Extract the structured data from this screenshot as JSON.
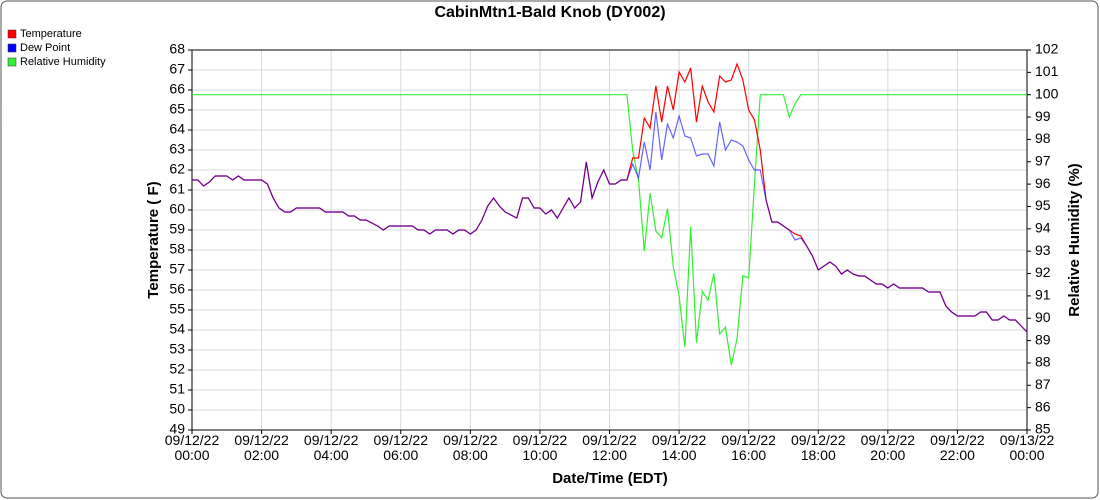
{
  "chart_data": {
    "type": "line",
    "title": "CabinMtn1-Bald Knob (DY002)",
    "xlabel": "Date/Time (EDT)",
    "ylabel": "Temperature ( F)",
    "y2label": "Relative Humidity (%)",
    "grid": true,
    "legend": "top-left",
    "xlim": [
      "09/12/22 00:00",
      "09/13/22 00:00"
    ],
    "xticks": [
      "09/12/22 00:00",
      "09/12/22 02:00",
      "09/12/22 04:00",
      "09/12/22 06:00",
      "09/12/22 08:00",
      "09/12/22 10:00",
      "09/12/22 12:00",
      "09/12/22 14:00",
      "09/12/22 16:00",
      "09/12/22 18:00",
      "09/12/22 20:00",
      "09/12/22 22:00",
      "09/13/22 00:00"
    ],
    "ylim": [
      49,
      68
    ],
    "yticks": [
      49,
      50,
      51,
      52,
      53,
      54,
      55,
      56,
      57,
      58,
      59,
      60,
      61,
      62,
      63,
      64,
      65,
      66,
      67,
      68
    ],
    "y2lim": [
      85,
      102
    ],
    "y2ticks": [
      85,
      86,
      87,
      88,
      89,
      90,
      91,
      92,
      93,
      94,
      95,
      96,
      97,
      98,
      99,
      100,
      101,
      102
    ],
    "x": [
      "09/12/22 00:00",
      "09/12/22 00:10",
      "09/12/22 00:20",
      "09/12/22 00:30",
      "09/12/22 00:40",
      "09/12/22 01:00",
      "09/12/22 01:10",
      "09/12/22 01:20",
      "09/12/22 01:30",
      "09/12/22 02:00",
      "09/12/22 02:10",
      "09/12/22 02:20",
      "09/12/22 02:30",
      "09/12/22 02:40",
      "09/12/22 02:50",
      "09/12/22 03:00",
      "09/12/22 03:40",
      "09/12/22 03:50",
      "09/12/22 04:20",
      "09/12/22 04:30",
      "09/12/22 04:40",
      "09/12/22 04:50",
      "09/12/22 05:00",
      "09/12/22 05:20",
      "09/12/22 05:30",
      "09/12/22 05:40",
      "09/12/22 06:20",
      "09/12/22 06:30",
      "09/12/22 06:40",
      "09/12/22 06:50",
      "09/12/22 07:00",
      "09/12/22 07:20",
      "09/12/22 07:30",
      "09/12/22 07:40",
      "09/12/22 07:50",
      "09/12/22 08:00",
      "09/12/22 08:10",
      "09/12/22 08:20",
      "09/12/22 08:30",
      "09/12/22 08:40",
      "09/12/22 08:50",
      "09/12/22 09:00",
      "09/12/22 09:20",
      "09/12/22 09:30",
      "09/12/22 09:40",
      "09/12/22 09:50",
      "09/12/22 10:00",
      "09/12/22 10:10",
      "09/12/22 10:20",
      "09/12/22 10:30",
      "09/12/22 10:40",
      "09/12/22 10:50",
      "09/12/22 11:00",
      "09/12/22 11:10",
      "09/12/22 11:20",
      "09/12/22 11:30",
      "09/12/22 11:40",
      "09/12/22 11:50",
      "09/12/22 12:00",
      "09/12/22 12:10",
      "09/12/22 12:20",
      "09/12/22 12:30",
      "09/12/22 12:40",
      "09/12/22 12:50",
      "09/12/22 13:00",
      "09/12/22 13:10",
      "09/12/22 13:20",
      "09/12/22 13:30",
      "09/12/22 13:40",
      "09/12/22 13:50",
      "09/12/22 14:00",
      "09/12/22 14:10",
      "09/12/22 14:20",
      "09/12/22 14:30",
      "09/12/22 14:40",
      "09/12/22 14:50",
      "09/12/22 15:00",
      "09/12/22 15:10",
      "09/12/22 15:20",
      "09/12/22 15:30",
      "09/12/22 15:40",
      "09/12/22 15:50",
      "09/12/22 16:00",
      "09/12/22 16:10",
      "09/12/22 16:20",
      "09/12/22 16:30",
      "09/12/22 16:40",
      "09/12/22 16:50",
      "09/12/22 17:00",
      "09/12/22 17:10",
      "09/12/22 17:20",
      "09/12/22 17:30",
      "09/12/22 17:40",
      "09/12/22 17:50",
      "09/12/22 18:00",
      "09/12/22 18:10",
      "09/12/22 18:20",
      "09/12/22 18:30",
      "09/12/22 18:40",
      "09/12/22 18:50",
      "09/12/22 19:00",
      "09/12/22 19:10",
      "09/12/22 19:20",
      "09/12/22 19:30",
      "09/12/22 19:40",
      "09/12/22 19:50",
      "09/12/22 20:00",
      "09/12/22 20:10",
      "09/12/22 20:20",
      "09/12/22 21:00",
      "09/12/22 21:10",
      "09/12/22 21:30",
      "09/12/22 21:40",
      "09/12/22 21:50",
      "09/12/22 22:00",
      "09/12/22 22:30",
      "09/12/22 22:40",
      "09/12/22 22:50",
      "09/12/22 23:00",
      "09/12/22 23:10",
      "09/12/22 23:20",
      "09/12/22 23:30",
      "09/12/22 23:40",
      "09/12/22 23:50",
      "09/13/22 00:00"
    ],
    "series": [
      {
        "name": "Temperature",
        "color": "#ff0000",
        "values": [
          61.5,
          61.5,
          61.2,
          61.4,
          61.7,
          61.7,
          61.5,
          61.7,
          61.5,
          61.5,
          61.3,
          60.6,
          60.1,
          59.9,
          59.9,
          60.1,
          60.1,
          59.9,
          59.9,
          59.7,
          59.7,
          59.5,
          59.5,
          59.2,
          59.0,
          59.2,
          59.2,
          59.0,
          59.0,
          58.8,
          59.0,
          59.0,
          58.8,
          59.0,
          59.0,
          58.8,
          59.0,
          59.5,
          60.2,
          60.6,
          60.2,
          59.9,
          59.6,
          60.6,
          60.6,
          60.1,
          60.1,
          59.8,
          60.0,
          59.6,
          60.1,
          60.6,
          60.1,
          60.4,
          62.4,
          60.6,
          61.4,
          62.0,
          61.3,
          61.3,
          61.5,
          61.5,
          62.6,
          62.6,
          64.6,
          64.1,
          66.2,
          64.4,
          66.2,
          65.0,
          66.9,
          66.4,
          67.1,
          64.4,
          66.2,
          65.4,
          64.9,
          66.7,
          66.4,
          66.5,
          67.3,
          66.5,
          65.0,
          64.5,
          63.0,
          60.5,
          59.4,
          59.4,
          59.2,
          59.0,
          58.8,
          58.7,
          58.2,
          57.7,
          57.0,
          57.2,
          57.4,
          57.2,
          56.8,
          57.0,
          56.8,
          56.7,
          56.7,
          56.5,
          56.3,
          56.3,
          56.1,
          56.3,
          56.1,
          56.1,
          55.9,
          55.9,
          55.2,
          54.9,
          54.7,
          54.7,
          54.9,
          54.9,
          54.5,
          54.5,
          54.7,
          54.5,
          54.5,
          54.2,
          53.9
        ]
      },
      {
        "name": "Dew Point",
        "color": "#0000ff",
        "values": [
          61.5,
          61.5,
          61.2,
          61.4,
          61.7,
          61.7,
          61.5,
          61.7,
          61.5,
          61.5,
          61.3,
          60.6,
          60.1,
          59.9,
          59.9,
          60.1,
          60.1,
          59.9,
          59.9,
          59.7,
          59.7,
          59.5,
          59.5,
          59.2,
          59.0,
          59.2,
          59.2,
          59.0,
          59.0,
          58.8,
          59.0,
          59.0,
          58.8,
          59.0,
          59.0,
          58.8,
          59.0,
          59.5,
          60.2,
          60.6,
          60.2,
          59.9,
          59.6,
          60.6,
          60.6,
          60.1,
          60.1,
          59.8,
          60.0,
          59.6,
          60.1,
          60.6,
          60.1,
          60.4,
          62.4,
          60.6,
          61.4,
          62.0,
          61.3,
          61.3,
          61.5,
          61.5,
          62.3,
          61.6,
          63.4,
          62.0,
          64.9,
          62.5,
          64.3,
          63.6,
          64.7,
          63.7,
          63.6,
          62.7,
          62.8,
          62.8,
          62.2,
          64.4,
          63.0,
          63.5,
          63.4,
          63.2,
          62.5,
          62.0,
          62.0,
          60.5,
          59.4,
          59.4,
          59.2,
          59.0,
          58.5,
          58.6,
          58.2,
          57.7,
          57.0,
          57.2,
          57.4,
          57.2,
          56.8,
          57.0,
          56.8,
          56.7,
          56.7,
          56.5,
          56.3,
          56.3,
          56.1,
          56.3,
          56.1,
          56.1,
          55.9,
          55.9,
          55.2,
          54.9,
          54.7,
          54.7,
          54.9,
          54.9,
          54.5,
          54.5,
          54.7,
          54.5,
          54.5,
          54.2,
          53.9
        ]
      },
      {
        "name": "Relative Humidity",
        "color": "#33ee33",
        "axis": "y2",
        "values": [
          100,
          100,
          100,
          100,
          100,
          100,
          100,
          100,
          100,
          100,
          100,
          100,
          100,
          100,
          100,
          100,
          100,
          100,
          100,
          100,
          100,
          100,
          100,
          100,
          100,
          100,
          100,
          100,
          100,
          100,
          100,
          100,
          100,
          100,
          100,
          100,
          100,
          100,
          100,
          100,
          100,
          100,
          100,
          100,
          100,
          100,
          100,
          100,
          100,
          100,
          100,
          100,
          100,
          100,
          100,
          100,
          100,
          100,
          100,
          100,
          100,
          100,
          97.5,
          96.2,
          93.0,
          95.6,
          93.9,
          93.6,
          94.9,
          92.3,
          91.0,
          88.7,
          94.1,
          88.9,
          91.2,
          90.8,
          92.0,
          89.3,
          89.6,
          87.9,
          89.1,
          91.9,
          91.8,
          96.0,
          100,
          100,
          100,
          100,
          100,
          99.0,
          99.6,
          100,
          100,
          100,
          100,
          100,
          100,
          100,
          100,
          100,
          100,
          100,
          100,
          100,
          100,
          100,
          100,
          100,
          100,
          100,
          100,
          100,
          100,
          100,
          100,
          100,
          100,
          100,
          100,
          100,
          100,
          100,
          100,
          100,
          100
        ]
      }
    ]
  }
}
